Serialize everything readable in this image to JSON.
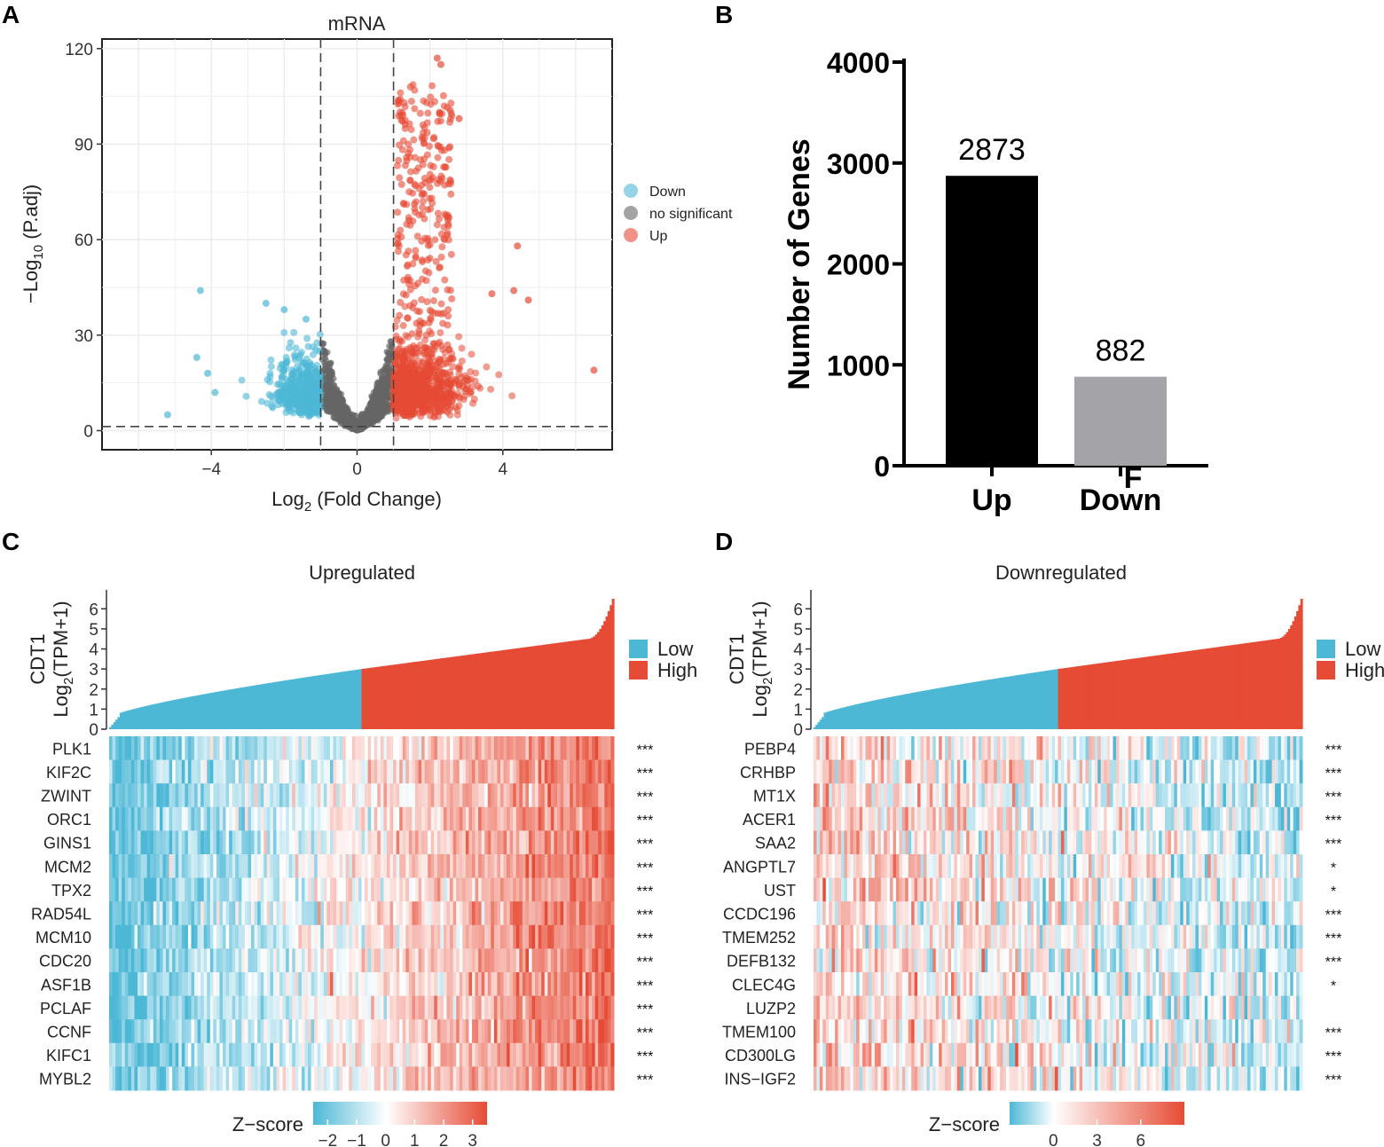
{
  "panels": {
    "A": "A",
    "B": "B",
    "C": "C",
    "D": "D"
  },
  "colors": {
    "down": "#4db8d6",
    "nosig": "#666666",
    "up": "#e64b35",
    "bar_up": "#000000",
    "bar_down": "#a3a3a8",
    "low": "#4db8d6",
    "high": "#e64b35"
  },
  "chart_data": [
    {
      "id": "volcano",
      "type": "scatter",
      "title": "mRNA",
      "xlabel": "Log2 (Fold Change)",
      "ylabel": "−Log10 (P.adj)",
      "xlim": [
        -7,
        7
      ],
      "ylim": [
        -6,
        123
      ],
      "xticks": [
        "-4",
        "0",
        "4"
      ],
      "yticks": [
        "0",
        "30",
        "60",
        "90",
        "120"
      ],
      "thresholds": {
        "log2fc": [
          -1,
          1
        ],
        "neglog10padj": 1.3
      },
      "legend": [
        "Down",
        "no significant",
        "Up"
      ],
      "legend_position": "right",
      "series_highlights": {
        "Down": [
          [
            -4.3,
            44
          ],
          [
            -5.2,
            5
          ],
          [
            -4.4,
            23
          ],
          [
            -4.1,
            18
          ],
          [
            -3.9,
            12
          ],
          [
            -2.5,
            40
          ],
          [
            -2.0,
            38
          ],
          [
            -1.4,
            35
          ]
        ],
        "Up": [
          [
            2.2,
            117
          ],
          [
            2.3,
            115
          ],
          [
            6.5,
            19
          ],
          [
            4.4,
            58
          ],
          [
            4.3,
            44
          ],
          [
            4.7,
            41
          ],
          [
            3.7,
            43
          ],
          [
            2.8,
            98
          ]
        ]
      }
    },
    {
      "id": "counts",
      "type": "bar",
      "categories": [
        "Up",
        "Down"
      ],
      "values": [
        2873,
        882
      ],
      "value_labels": [
        "2873",
        "882"
      ],
      "ylabel": "Number of Genes",
      "ylim": [
        0,
        4000
      ],
      "yticks": [
        "0",
        "1000",
        "2000",
        "3000",
        "4000"
      ],
      "stray_mark": "F"
    },
    {
      "id": "heat_up",
      "type": "heatmap",
      "title": "Upregulated",
      "top_ylabel_1": "CDT1",
      "top_ylabel_2": "Log2 (TPM+1)",
      "top_ylim": [
        0,
        6.5
      ],
      "top_yticks": [
        "0",
        "1",
        "2",
        "3",
        "4",
        "5",
        "6"
      ],
      "groups": [
        "Low",
        "High"
      ],
      "genes": [
        "PLK1",
        "KIF2C",
        "ZWINT",
        "ORC1",
        "GINS1",
        "MCM2",
        "TPX2",
        "RAD54L",
        "MCM10",
        "CDC20",
        "ASF1B",
        "PCLAF",
        "CCNF",
        "KIFC1",
        "MYBL2"
      ],
      "significance": [
        "***",
        "***",
        "***",
        "***",
        "***",
        "***",
        "***",
        "***",
        "***",
        "***",
        "***",
        "***",
        "***",
        "***",
        "***"
      ],
      "colorbar_label": "Z−score",
      "colorbar_ticks": [
        "−2",
        "−1",
        "0",
        "1",
        "2",
        "3"
      ],
      "colorbar_range": [
        -2.5,
        3.5
      ]
    },
    {
      "id": "heat_down",
      "type": "heatmap",
      "title": "Downregulated",
      "top_ylabel_1": "CDT1",
      "top_ylabel_2": "Log2 (TPM+1)",
      "top_ylim": [
        0,
        6.5
      ],
      "top_yticks": [
        "0",
        "1",
        "2",
        "3",
        "4",
        "5",
        "6"
      ],
      "groups": [
        "Low",
        "High"
      ],
      "genes": [
        "PEBP4",
        "CRHBP",
        "MT1X",
        "ACER1",
        "SAA2",
        "ANGPTL7",
        "UST",
        "CCDC196",
        "TMEM252",
        "DEFB132",
        "CLEC4G",
        "LUZP2",
        "TMEM100",
        "CD300LG",
        "INS−IGF2"
      ],
      "significance": [
        "***",
        "***",
        "***",
        "***",
        "***",
        "*",
        "*",
        "***",
        "***",
        "***",
        "*",
        "",
        "***",
        "***",
        "***"
      ],
      "colorbar_label": "Z−score",
      "colorbar_ticks": [
        "0",
        "3",
        "6"
      ],
      "colorbar_range": [
        -3,
        9
      ]
    }
  ]
}
